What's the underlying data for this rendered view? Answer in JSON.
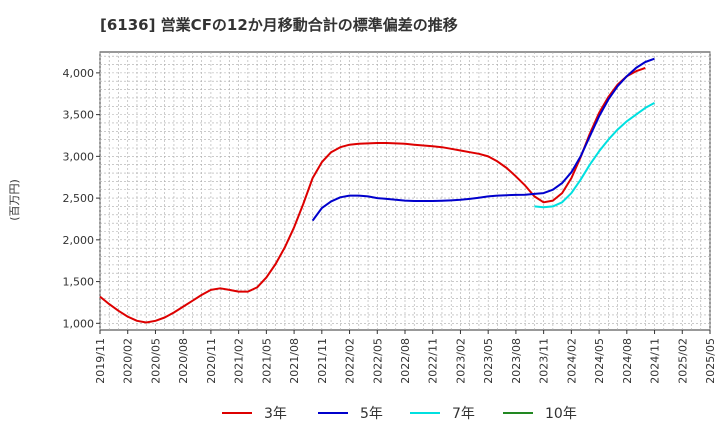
{
  "chart_data": {
    "type": "line",
    "title": "[6136]  営業CFの12か月移動合計の標準偏差の推移",
    "ylabel": "(百万円)",
    "xlabel": "",
    "ylim": [
      920,
      4250
    ],
    "yticks": [
      1000,
      1500,
      2000,
      2500,
      3000,
      3500,
      4000
    ],
    "ytick_labels": [
      "1,000",
      "1,500",
      "2,000",
      "2,500",
      "3,000",
      "3,500",
      "4,000"
    ],
    "xlim": [
      "2019-11",
      "2025-05"
    ],
    "xtick_labels": [
      "2019/11",
      "2020/02",
      "2020/05",
      "2020/08",
      "2020/11",
      "2021/02",
      "2021/05",
      "2021/08",
      "2021/11",
      "2022/02",
      "2022/05",
      "2022/08",
      "2022/11",
      "2023/02",
      "2023/05",
      "2023/08",
      "2023/11",
      "2024/02",
      "2024/05",
      "2024/08",
      "2024/11",
      "2025/02",
      "2025/05"
    ],
    "grid": true,
    "legend_position": "bottom",
    "series": [
      {
        "name": "3年",
        "color": "#dd0000",
        "points": [
          [
            "2019-11",
            1320
          ],
          [
            "2019-12",
            1230
          ],
          [
            "2020-01",
            1150
          ],
          [
            "2020-02",
            1080
          ],
          [
            "2020-03",
            1030
          ],
          [
            "2020-04",
            1010
          ],
          [
            "2020-05",
            1030
          ],
          [
            "2020-06",
            1070
          ],
          [
            "2020-07",
            1130
          ],
          [
            "2020-08",
            1200
          ],
          [
            "2020-09",
            1270
          ],
          [
            "2020-10",
            1340
          ],
          [
            "2020-11",
            1400
          ],
          [
            "2020-12",
            1420
          ],
          [
            "2021-01",
            1400
          ],
          [
            "2021-02",
            1380
          ],
          [
            "2021-03",
            1380
          ],
          [
            "2021-04",
            1430
          ],
          [
            "2021-05",
            1550
          ],
          [
            "2021-06",
            1710
          ],
          [
            "2021-07",
            1910
          ],
          [
            "2021-08",
            2150
          ],
          [
            "2021-09",
            2430
          ],
          [
            "2021-10",
            2740
          ],
          [
            "2021-11",
            2930
          ],
          [
            "2021-12",
            3050
          ],
          [
            "2022-01",
            3110
          ],
          [
            "2022-02",
            3140
          ],
          [
            "2022-03",
            3150
          ],
          [
            "2022-04",
            3155
          ],
          [
            "2022-05",
            3160
          ],
          [
            "2022-06",
            3160
          ],
          [
            "2022-07",
            3155
          ],
          [
            "2022-08",
            3150
          ],
          [
            "2022-09",
            3140
          ],
          [
            "2022-10",
            3130
          ],
          [
            "2022-11",
            3120
          ],
          [
            "2022-12",
            3110
          ],
          [
            "2023-01",
            3090
          ],
          [
            "2023-02",
            3070
          ],
          [
            "2023-03",
            3050
          ],
          [
            "2023-04",
            3030
          ],
          [
            "2023-05",
            3000
          ],
          [
            "2023-06",
            2940
          ],
          [
            "2023-07",
            2860
          ],
          [
            "2023-08",
            2760
          ],
          [
            "2023-09",
            2650
          ],
          [
            "2023-10",
            2520
          ],
          [
            "2023-11",
            2450
          ],
          [
            "2023-12",
            2470
          ],
          [
            "2024-01",
            2560
          ],
          [
            "2024-02",
            2740
          ],
          [
            "2024-03",
            2990
          ],
          [
            "2024-04",
            3270
          ],
          [
            "2024-05",
            3520
          ],
          [
            "2024-06",
            3710
          ],
          [
            "2024-07",
            3860
          ],
          [
            "2024-08",
            3960
          ],
          [
            "2024-09",
            4020
          ],
          [
            "2024-10",
            4060
          ]
        ]
      },
      {
        "name": "5年",
        "color": "#0000cc",
        "points": [
          [
            "2021-10",
            2230
          ],
          [
            "2021-11",
            2380
          ],
          [
            "2021-12",
            2460
          ],
          [
            "2022-01",
            2510
          ],
          [
            "2022-02",
            2530
          ],
          [
            "2022-03",
            2530
          ],
          [
            "2022-04",
            2520
          ],
          [
            "2022-05",
            2500
          ],
          [
            "2022-06",
            2490
          ],
          [
            "2022-07",
            2480
          ],
          [
            "2022-08",
            2470
          ],
          [
            "2022-09",
            2465
          ],
          [
            "2022-10",
            2465
          ],
          [
            "2022-11",
            2465
          ],
          [
            "2022-12",
            2468
          ],
          [
            "2023-01",
            2472
          ],
          [
            "2023-02",
            2480
          ],
          [
            "2023-03",
            2490
          ],
          [
            "2023-04",
            2505
          ],
          [
            "2023-05",
            2520
          ],
          [
            "2023-06",
            2530
          ],
          [
            "2023-07",
            2535
          ],
          [
            "2023-08",
            2538
          ],
          [
            "2023-09",
            2540
          ],
          [
            "2023-10",
            2550
          ],
          [
            "2023-11",
            2560
          ],
          [
            "2023-12",
            2600
          ],
          [
            "2024-01",
            2680
          ],
          [
            "2024-02",
            2810
          ],
          [
            "2024-03",
            3000
          ],
          [
            "2024-04",
            3240
          ],
          [
            "2024-05",
            3480
          ],
          [
            "2024-06",
            3680
          ],
          [
            "2024-07",
            3840
          ],
          [
            "2024-08",
            3960
          ],
          [
            "2024-09",
            4060
          ],
          [
            "2024-10",
            4130
          ],
          [
            "2024-11",
            4170
          ]
        ]
      },
      {
        "name": "7年",
        "color": "#00e0e0",
        "points": [
          [
            "2023-10",
            2400
          ],
          [
            "2023-11",
            2390
          ],
          [
            "2023-12",
            2400
          ],
          [
            "2024-01",
            2450
          ],
          [
            "2024-02",
            2560
          ],
          [
            "2024-03",
            2720
          ],
          [
            "2024-04",
            2900
          ],
          [
            "2024-05",
            3060
          ],
          [
            "2024-06",
            3200
          ],
          [
            "2024-07",
            3320
          ],
          [
            "2024-08",
            3420
          ],
          [
            "2024-09",
            3500
          ],
          [
            "2024-10",
            3580
          ],
          [
            "2024-11",
            3640
          ]
        ]
      },
      {
        "name": "10年",
        "color": "#228822",
        "points": []
      }
    ]
  }
}
